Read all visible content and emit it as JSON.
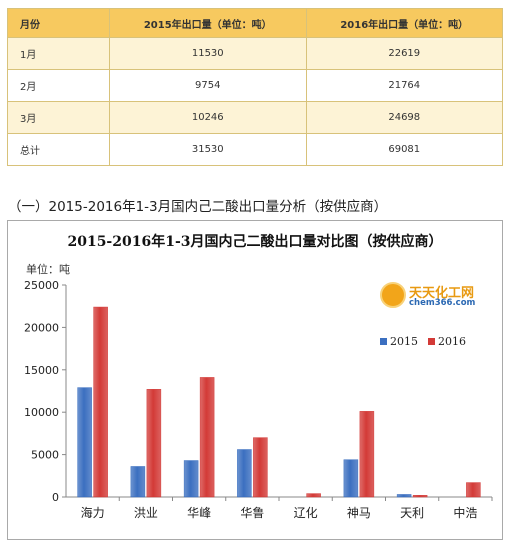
{
  "table": {
    "headers": [
      "月份",
      "2015年出口量（单位：吨）",
      "2016年出口量（单位：吨）"
    ],
    "rows": [
      [
        "1月",
        "11530",
        "22619"
      ],
      [
        "2月",
        "9754",
        "21764"
      ],
      [
        "3月",
        "10246",
        "24698"
      ],
      [
        "总计",
        "31530",
        "69081"
      ]
    ]
  },
  "section_title": "（一）2015-2016年1-3月国内己二酸出口量分析（按供应商）",
  "logo": {
    "name": "天天化工网",
    "url": "chem366.com"
  },
  "colors": {
    "series_2015": "#3b6fc0",
    "series_2016": "#d33a37",
    "header_bg": "#f7c95f"
  },
  "chart_data": {
    "type": "bar",
    "title": "2015-2016年1-3月国内己二酸出口量对比图（按供应商）",
    "ylabel": "单位：吨",
    "xlabel": "",
    "categories": [
      "海力",
      "洪业",
      "华峰",
      "华鲁",
      "辽化",
      "神马",
      "天利",
      "中浩"
    ],
    "series": [
      {
        "name": "2015",
        "values": [
          12900,
          3600,
          4300,
          5600,
          0,
          4400,
          300,
          0
        ]
      },
      {
        "name": "2016",
        "values": [
          22400,
          12700,
          14100,
          7000,
          400,
          10100,
          200,
          1700
        ]
      }
    ],
    "ylim": [
      0,
      25000
    ],
    "yticks": [
      "0",
      "5000",
      "10000",
      "15000",
      "20000",
      "25000"
    ],
    "legend_position": "right",
    "grid": false
  }
}
